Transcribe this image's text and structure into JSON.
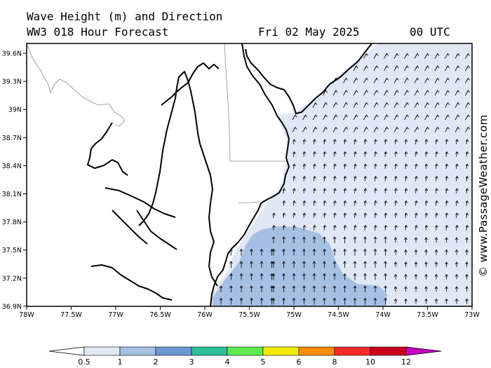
{
  "header": {
    "title_line1": "Wave Height (m) and Direction",
    "title_line2": "WW3 018 Hour Forecast",
    "date": "Fri 02 May 2025",
    "hour": "00 UTC"
  },
  "credit": "© www.PassageWeather.com",
  "map": {
    "lat_labels": [
      "39.6N",
      "39.3N",
      "39N",
      "38.7N",
      "38.4N",
      "38.1N",
      "37.8N",
      "37.5N",
      "37.2N",
      "36.9N"
    ],
    "lon_labels": [
      "78W",
      "77.5W",
      "77W",
      "76.5W",
      "76W",
      "75.5W",
      "75W",
      "74.5W",
      "74W",
      "73.5W",
      "73W"
    ],
    "lat_range": [
      36.7,
      39.7
    ],
    "lon_range": [
      -78,
      -73
    ],
    "wave_direction": "from south (arrows pointing north)",
    "colors": {
      "land": "#ffffff",
      "sea_0_5_1": "#e0e7f5",
      "sea_1_2": "#a6c0e4"
    }
  },
  "colorbar": {
    "labels": [
      "0.5",
      "1",
      "2",
      "3",
      "4",
      "5",
      "6",
      "8",
      "10",
      "12"
    ],
    "colors": [
      "#e0e7f5",
      "#a6c0e4",
      "#6b98d4",
      "#2bbf9a",
      "#5cea4d",
      "#f4ea00",
      "#ff8c00",
      "#ff2a2a",
      "#c8001e",
      "#c400c4"
    ]
  }
}
